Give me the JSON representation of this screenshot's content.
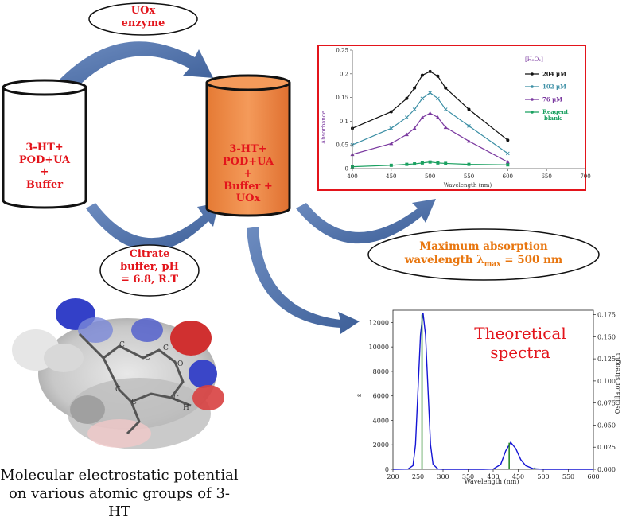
{
  "enzyme_ellipse": {
    "line1": "UOx",
    "line2": "enzyme"
  },
  "cyl_left": {
    "lines": [
      "3-HT+",
      "POD+UA",
      "+",
      "Buffer"
    ]
  },
  "cyl_right": {
    "lines": [
      "3-HT+",
      "POD+UA",
      "+",
      "Buffer +",
      "UOx"
    ]
  },
  "citrate_ellipse": {
    "lines": [
      "Citrate",
      "buffer, pH",
      "= 6.8, R.T"
    ]
  },
  "max_abs": {
    "line1": "Maximum absorption",
    "line2_prefix": "wavelength λ",
    "line2_sub": "max",
    "line2_suffix": " = 500 nm"
  },
  "molecule_caption": {
    "line1": "Molecular electrostatic potential",
    "line2": "on various atomic groups of 3-HT"
  },
  "colors": {
    "red_text": "#e3141b",
    "orange_text": "#e8760f",
    "cylinder_fill": "#f08540",
    "arrow": "#4a6fa5",
    "frame_red": "#e3141b"
  },
  "chart_data": [
    {
      "type": "line",
      "xlabel": "Wavelength (nm)",
      "ylabel": "Absorbance",
      "xlim": [
        400,
        700
      ],
      "ylim": [
        0,
        0.25
      ],
      "xticks": [
        "400",
        "450",
        "500",
        "550",
        "600",
        "650",
        "700"
      ],
      "yticks": [
        "0",
        "0.05",
        "0.1",
        "0.15",
        "0.2",
        "0.25"
      ],
      "legend_title": "[H₂O₂]",
      "legend_position": "right",
      "x": [
        400,
        450,
        470,
        480,
        490,
        500,
        510,
        520,
        550,
        600
      ],
      "series": [
        {
          "name": "204 μM",
          "color": "#111111",
          "marker": "circle",
          "values": [
            0.085,
            0.12,
            0.148,
            0.17,
            0.197,
            0.205,
            0.195,
            0.17,
            0.125,
            0.06
          ]
        },
        {
          "name": "102 μM",
          "color": "#3c8fa5",
          "marker": "x",
          "values": [
            0.05,
            0.085,
            0.108,
            0.125,
            0.148,
            0.16,
            0.148,
            0.125,
            0.09,
            0.032
          ]
        },
        {
          "name": "76 μM",
          "color": "#7b3aa0",
          "marker": "triangle",
          "values": [
            0.03,
            0.053,
            0.072,
            0.085,
            0.108,
            0.117,
            0.108,
            0.087,
            0.058,
            0.014
          ]
        },
        {
          "name": "Reagent blank",
          "color": "#1aa060",
          "marker": "square",
          "values": [
            0.004,
            0.007,
            0.009,
            0.01,
            0.012,
            0.014,
            0.012,
            0.011,
            0.009,
            0.008
          ]
        }
      ]
    },
    {
      "type": "line",
      "title": "Theoretical spectra",
      "xlabel": "Wavelength (nm)",
      "ylabel": "ε",
      "ylabel2": "Oscillator strength",
      "xlim": [
        200,
        600
      ],
      "ylim": [
        0,
        13000
      ],
      "y2lim": [
        0,
        0.18
      ],
      "xticks": [
        "200",
        "250",
        "300",
        "350",
        "400",
        "450",
        "500",
        "550",
        "600"
      ],
      "yticks": [
        "0",
        "2000",
        "4000",
        "6000",
        "8000",
        "10000",
        "12000"
      ],
      "y2ticks": [
        "0.000",
        "0.025",
        "0.050",
        "0.075",
        "0.100",
        "0.125",
        "0.150",
        "0.175"
      ],
      "series": [
        {
          "name": "",
          "color": "#1414d4",
          "x": [
            200,
            230,
            240,
            245,
            250,
            255,
            260,
            265,
            270,
            275,
            280,
            290,
            300,
            350,
            380,
            400,
            415,
            425,
            435,
            445,
            455,
            465,
            480,
            500,
            550,
            600
          ],
          "values": [
            0,
            20,
            300,
            2000,
            6500,
            11000,
            12800,
            11000,
            6500,
            2000,
            400,
            20,
            0,
            0,
            0,
            20,
            400,
            1500,
            2200,
            1700,
            800,
            300,
            50,
            0,
            0,
            0
          ]
        },
        {
          "name": "",
          "color": "#2a8a2a",
          "type": "stick",
          "x": [
            258,
            432,
            483
          ],
          "values": [
            0.175,
            0.03,
            0.002
          ]
        }
      ]
    }
  ]
}
